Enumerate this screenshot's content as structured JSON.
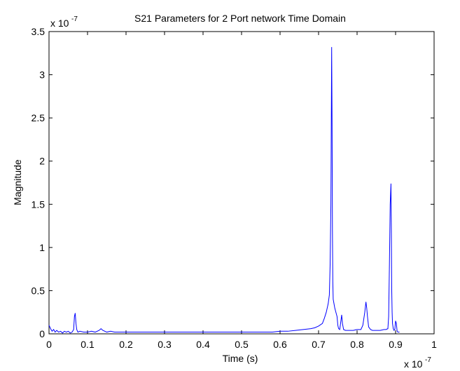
{
  "chart_data": {
    "type": "line",
    "title": "S21 Parameters for 2 Port network Time Domain",
    "xlabel": "Time (s)",
    "ylabel": "Magnitude",
    "x_scale_label": "x 10",
    "x_scale_exponent": "-7",
    "y_scale_label": "x 10",
    "y_scale_exponent": "-7",
    "xlim": [
      0,
      1
    ],
    "ylim": [
      0,
      3.5
    ],
    "x_ticks": [
      0,
      0.1,
      0.2,
      0.3,
      0.4,
      0.5,
      0.6,
      0.7,
      0.8,
      0.9,
      1
    ],
    "x_tick_labels": [
      "0",
      "0.1",
      "0.2",
      "0.3",
      "0.4",
      "0.5",
      "0.6",
      "0.7",
      "0.8",
      "0.9",
      "1"
    ],
    "y_ticks": [
      0,
      0.5,
      1,
      1.5,
      2,
      2.5,
      3,
      3.5
    ],
    "y_tick_labels": [
      "0",
      "0.5",
      "1",
      "1.5",
      "2",
      "2.5",
      "3",
      "3.5"
    ],
    "grid": false,
    "line_color": "#0000ff",
    "series": [
      {
        "x": [
          0,
          0.004,
          0.008,
          0.012,
          0.016,
          0.02,
          0.025,
          0.03,
          0.035,
          0.04,
          0.045,
          0.05,
          0.055,
          0.06,
          0.064,
          0.066,
          0.068,
          0.07,
          0.072,
          0.075,
          0.08,
          0.09,
          0.1,
          0.11,
          0.12,
          0.13,
          0.135,
          0.14,
          0.15,
          0.16,
          0.17,
          0.18,
          0.2,
          0.22,
          0.25,
          0.28,
          0.3,
          0.33,
          0.35,
          0.38,
          0.4,
          0.43,
          0.45,
          0.48,
          0.5,
          0.53,
          0.55,
          0.58,
          0.6,
          0.62,
          0.64,
          0.66,
          0.68,
          0.69,
          0.7,
          0.71,
          0.715,
          0.72,
          0.725,
          0.728,
          0.73,
          0.732,
          0.734,
          0.735,
          0.736,
          0.737,
          0.738,
          0.74,
          0.742,
          0.745,
          0.748,
          0.75,
          0.752,
          0.755,
          0.758,
          0.76,
          0.762,
          0.765,
          0.77,
          0.78,
          0.79,
          0.8,
          0.81,
          0.815,
          0.82,
          0.823,
          0.825,
          0.827,
          0.83,
          0.835,
          0.84,
          0.85,
          0.86,
          0.87,
          0.875,
          0.88,
          0.882,
          0.884,
          0.886,
          0.888,
          0.889,
          0.89,
          0.891,
          0.892,
          0.894,
          0.896,
          0.898,
          0.9,
          0.902,
          0.904,
          0.906,
          0.91
        ],
        "y": [
          0.1,
          0.06,
          0.03,
          0.05,
          0.02,
          0.04,
          0.02,
          0.03,
          0.01,
          0.03,
          0.02,
          0.03,
          0.01,
          0.02,
          0.05,
          0.2,
          0.24,
          0.12,
          0.05,
          0.02,
          0.03,
          0.02,
          0.02,
          0.03,
          0.02,
          0.04,
          0.06,
          0.04,
          0.02,
          0.03,
          0.02,
          0.02,
          0.02,
          0.02,
          0.02,
          0.02,
          0.02,
          0.02,
          0.02,
          0.02,
          0.02,
          0.02,
          0.02,
          0.02,
          0.02,
          0.02,
          0.02,
          0.02,
          0.03,
          0.03,
          0.04,
          0.05,
          0.06,
          0.07,
          0.09,
          0.12,
          0.18,
          0.25,
          0.35,
          0.45,
          0.8,
          1.5,
          3.32,
          2.5,
          1.2,
          0.6,
          0.4,
          0.35,
          0.3,
          0.25,
          0.2,
          0.1,
          0.06,
          0.05,
          0.15,
          0.22,
          0.12,
          0.05,
          0.04,
          0.04,
          0.04,
          0.05,
          0.05,
          0.1,
          0.25,
          0.37,
          0.3,
          0.2,
          0.08,
          0.05,
          0.04,
          0.04,
          0.04,
          0.05,
          0.05,
          0.06,
          0.2,
          0.8,
          1.5,
          1.74,
          1.2,
          0.5,
          0.25,
          0.12,
          0.06,
          0.04,
          0.05,
          0.15,
          0.12,
          0.03,
          0.02,
          0.02
        ]
      }
    ]
  }
}
